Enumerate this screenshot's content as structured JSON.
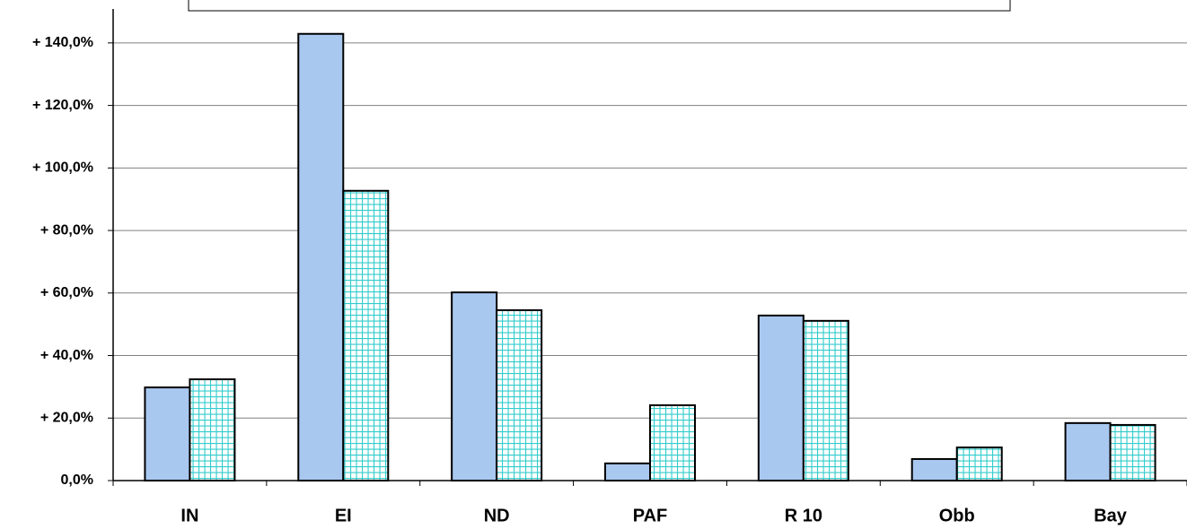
{
  "chart_data": {
    "type": "bar",
    "categories": [
      "IN",
      "EI",
      "ND",
      "PAF",
      "R 10",
      "Obb",
      "Bay"
    ],
    "series": [
      {
        "color": "#a9c8f0",
        "values": [
          29.8,
          142.9,
          60.2,
          5.5,
          52.8,
          6.9,
          18.4
        ]
      },
      {
        "color": "#33cccc",
        "values": [
          32.4,
          92.7,
          54.5,
          24.1,
          51.1,
          10.6,
          17.8
        ]
      }
    ],
    "ylim": [
      0,
      150
    ],
    "yticks": [
      {
        "value": 0,
        "label": "0,0%"
      },
      {
        "value": 20,
        "label": "+ 20,0%"
      },
      {
        "value": 40,
        "label": "+ 40,0%"
      },
      {
        "value": 60,
        "label": "+ 60,0%"
      },
      {
        "value": 80,
        "label": "+ 80,0%"
      },
      {
        "value": 100,
        "label": "+ 100,0%"
      },
      {
        "value": 120,
        "label": "+ 120,0%"
      },
      {
        "value": 140,
        "label": "+ 140,0%"
      }
    ],
    "grid": true
  }
}
